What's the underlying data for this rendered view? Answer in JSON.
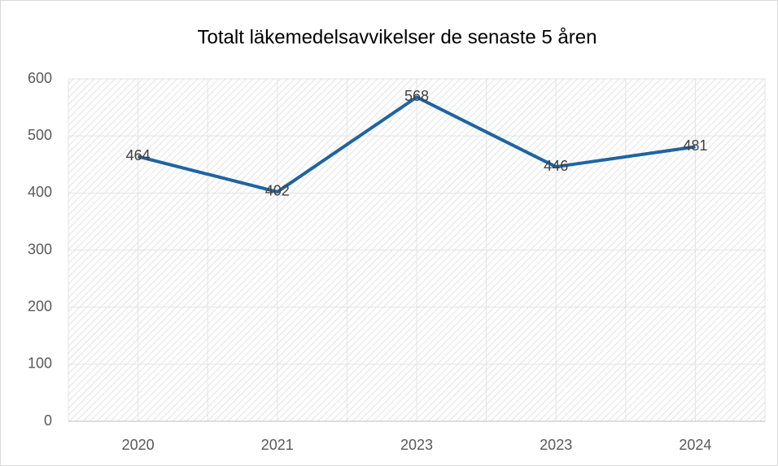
{
  "chart_data": {
    "type": "line",
    "title": "Totalt läkemedelsavvikelser de senaste 5 åren",
    "categories": [
      "2020",
      "2021",
      "2023",
      "2023",
      "2024"
    ],
    "series": [
      {
        "name": "Totalt",
        "color": "#1f64a0",
        "values": [
          464,
          402,
          568,
          446,
          481
        ]
      }
    ],
    "ylim": [
      0,
      600
    ],
    "yticks": [
      0,
      100,
      200,
      300,
      400,
      500,
      600
    ],
    "grid": true,
    "data_labels": true
  }
}
